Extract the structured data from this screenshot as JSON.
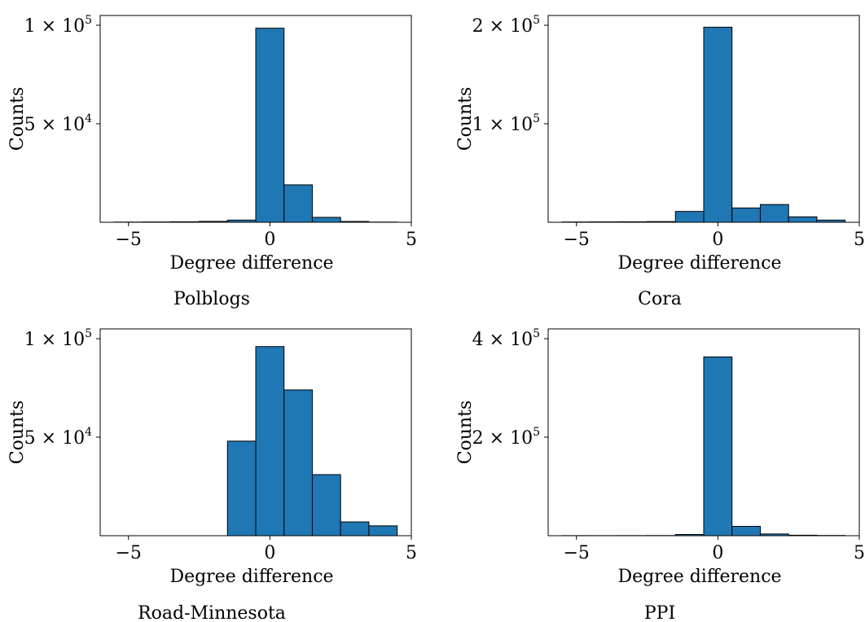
{
  "chart_data": [
    {
      "type": "bar",
      "caption": "Polblogs",
      "xlabel": "Degree difference",
      "ylabel": "Counts",
      "x_ticks": [
        -5,
        0,
        5
      ],
      "x_tick_labels": [
        "−5",
        "0",
        "5"
      ],
      "xlim": [
        -6,
        5
      ],
      "ylim": [
        0,
        100000
      ],
      "y_ticks": [
        {
          "value": 50000,
          "mantissa": "5",
          "exponent": "4"
        },
        {
          "value": 100000,
          "mantissa": "1",
          "exponent": "5"
        }
      ],
      "bins": [
        {
          "x": -5,
          "value": 100
        },
        {
          "x": -4,
          "value": 150
        },
        {
          "x": -3,
          "value": 250
        },
        {
          "x": -2,
          "value": 450
        },
        {
          "x": -1,
          "value": 1100
        },
        {
          "x": 0,
          "value": 98500
        },
        {
          "x": 1,
          "value": 19000
        },
        {
          "x": 2,
          "value": 2500
        },
        {
          "x": 3,
          "value": 400
        },
        {
          "x": 4,
          "value": 100
        }
      ]
    },
    {
      "type": "bar",
      "caption": "Cora",
      "xlabel": "Degree difference",
      "ylabel": "Counts",
      "x_ticks": [
        -5,
        0,
        5
      ],
      "x_tick_labels": [
        "−5",
        "0",
        "5"
      ],
      "xlim": [
        -6,
        5
      ],
      "ylim": [
        0,
        200000
      ],
      "y_ticks": [
        {
          "value": 100000,
          "mantissa": "1",
          "exponent": "5"
        },
        {
          "value": 200000,
          "mantissa": "2",
          "exponent": "5"
        }
      ],
      "bins": [
        {
          "x": -5,
          "value": 300
        },
        {
          "x": -4,
          "value": 400
        },
        {
          "x": -3,
          "value": 500
        },
        {
          "x": -2,
          "value": 700
        },
        {
          "x": -1,
          "value": 11000
        },
        {
          "x": 0,
          "value": 198000
        },
        {
          "x": 1,
          "value": 14500
        },
        {
          "x": 2,
          "value": 18000
        },
        {
          "x": 3,
          "value": 5500
        },
        {
          "x": 4,
          "value": 2200
        }
      ]
    },
    {
      "type": "bar",
      "caption": "Road-Minnesota",
      "xlabel": "Degree difference",
      "ylabel": "Counts",
      "x_ticks": [
        -5,
        0,
        5
      ],
      "x_tick_labels": [
        "−5",
        "0",
        "5"
      ],
      "xlim": [
        -6,
        5
      ],
      "ylim": [
        0,
        100000
      ],
      "y_ticks": [
        {
          "value": 50000,
          "mantissa": "5",
          "exponent": "4"
        },
        {
          "value": 100000,
          "mantissa": "1",
          "exponent": "5"
        }
      ],
      "bins": [
        {
          "x": -5,
          "value": 0
        },
        {
          "x": -4,
          "value": 0
        },
        {
          "x": -3,
          "value": 0
        },
        {
          "x": -2,
          "value": 0
        },
        {
          "x": -1,
          "value": 48000
        },
        {
          "x": 0,
          "value": 96000
        },
        {
          "x": 1,
          "value": 74000
        },
        {
          "x": 2,
          "value": 31000
        },
        {
          "x": 3,
          "value": 7000
        },
        {
          "x": 4,
          "value": 5000
        }
      ]
    },
    {
      "type": "bar",
      "caption": "PPI",
      "xlabel": "Degree difference",
      "ylabel": "Counts",
      "x_ticks": [
        -5,
        0,
        5
      ],
      "x_tick_labels": [
        "−5",
        "0",
        "5"
      ],
      "xlim": [
        -6,
        5
      ],
      "ylim": [
        0,
        400000
      ],
      "y_ticks": [
        {
          "value": 200000,
          "mantissa": "2",
          "exponent": "5"
        },
        {
          "value": 400000,
          "mantissa": "4",
          "exponent": "5"
        }
      ],
      "bins": [
        {
          "x": -5,
          "value": 200
        },
        {
          "x": -4,
          "value": 200
        },
        {
          "x": -3,
          "value": 250
        },
        {
          "x": -2,
          "value": 350
        },
        {
          "x": -1,
          "value": 2500
        },
        {
          "x": 0,
          "value": 363000
        },
        {
          "x": 1,
          "value": 19000
        },
        {
          "x": 2,
          "value": 3500
        },
        {
          "x": 3,
          "value": 1000
        },
        {
          "x": 4,
          "value": 500
        }
      ]
    }
  ],
  "colors": {
    "bar_fill": "#1f77b4",
    "bar_edge": "#000000"
  }
}
